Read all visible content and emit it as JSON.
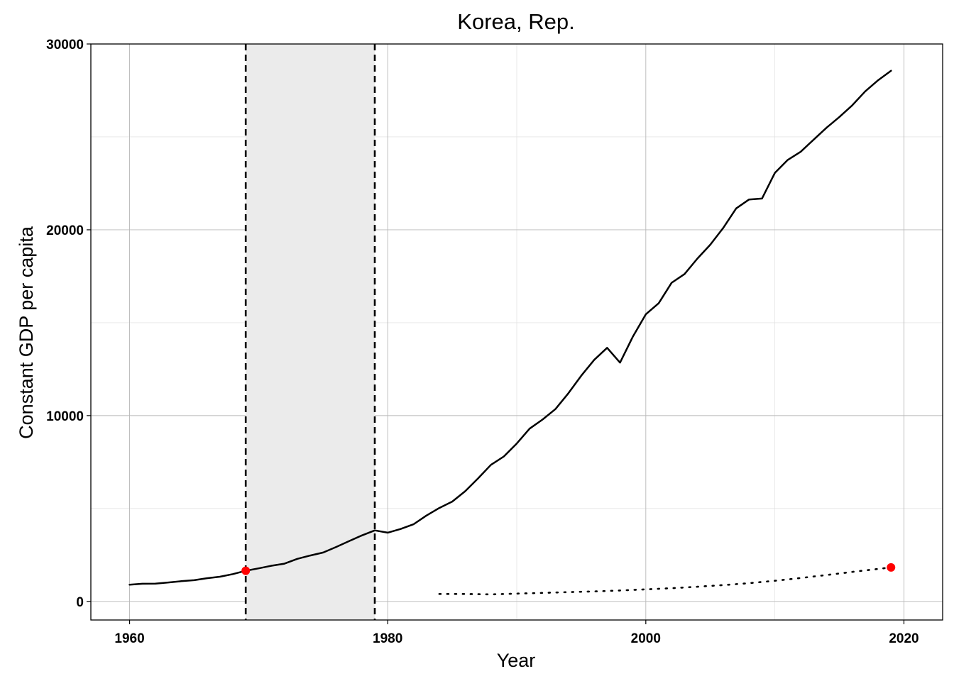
{
  "chart_data": {
    "type": "line",
    "title": "Korea, Rep.",
    "xlabel": "Year",
    "ylabel": "Constant GDP per capita",
    "xlim": [
      1957,
      2023
    ],
    "ylim": [
      -1000,
      30000
    ],
    "x_ticks": [
      1960,
      1980,
      2000,
      2020
    ],
    "y_ticks": [
      0,
      10000,
      20000,
      30000
    ],
    "grid": true,
    "legend": "none",
    "shaded_region": {
      "x_start": 1969,
      "x_end": 1979,
      "color": "#ebebeb"
    },
    "vertical_lines": [
      {
        "x": 1969,
        "style": "dashed"
      },
      {
        "x": 1979,
        "style": "dashed"
      }
    ],
    "series": [
      {
        "style": "solid",
        "color": "#000000",
        "points": [
          [
            1960,
            900
          ],
          [
            1961,
            950
          ],
          [
            1962,
            960
          ],
          [
            1963,
            1020
          ],
          [
            1964,
            1090
          ],
          [
            1965,
            1140
          ],
          [
            1966,
            1250
          ],
          [
            1967,
            1330
          ],
          [
            1968,
            1470
          ],
          [
            1969,
            1650
          ],
          [
            1970,
            1780
          ],
          [
            1971,
            1920
          ],
          [
            1972,
            2030
          ],
          [
            1973,
            2290
          ],
          [
            1974,
            2470
          ],
          [
            1975,
            2630
          ],
          [
            1976,
            2930
          ],
          [
            1977,
            3240
          ],
          [
            1978,
            3550
          ],
          [
            1979,
            3820
          ],
          [
            1980,
            3700
          ],
          [
            1981,
            3900
          ],
          [
            1982,
            4150
          ],
          [
            1983,
            4620
          ],
          [
            1984,
            5030
          ],
          [
            1985,
            5370
          ],
          [
            1986,
            5930
          ],
          [
            1987,
            6620
          ],
          [
            1988,
            7350
          ],
          [
            1989,
            7800
          ],
          [
            1990,
            8500
          ],
          [
            1991,
            9300
          ],
          [
            1992,
            9790
          ],
          [
            1993,
            10350
          ],
          [
            1994,
            11200
          ],
          [
            1995,
            12150
          ],
          [
            1996,
            13000
          ],
          [
            1997,
            13650
          ],
          [
            1998,
            12850
          ],
          [
            1999,
            14250
          ],
          [
            2000,
            15450
          ],
          [
            2001,
            16050
          ],
          [
            2002,
            17150
          ],
          [
            2003,
            17620
          ],
          [
            2004,
            18450
          ],
          [
            2005,
            19200
          ],
          [
            2006,
            20100
          ],
          [
            2007,
            21150
          ],
          [
            2008,
            21630
          ],
          [
            2009,
            21680
          ],
          [
            2010,
            23060
          ],
          [
            2011,
            23760
          ],
          [
            2012,
            24200
          ],
          [
            2013,
            24850
          ],
          [
            2014,
            25490
          ],
          [
            2015,
            26070
          ],
          [
            2016,
            26700
          ],
          [
            2017,
            27450
          ],
          [
            2018,
            28050
          ],
          [
            2019,
            28560
          ]
        ]
      },
      {
        "style": "dotted",
        "color": "#000000",
        "points": [
          [
            1984,
            400
          ],
          [
            1986,
            400
          ],
          [
            1988,
            380
          ],
          [
            1990,
            420
          ],
          [
            1992,
            460
          ],
          [
            1994,
            500
          ],
          [
            1996,
            540
          ],
          [
            1998,
            590
          ],
          [
            2000,
            650
          ],
          [
            2002,
            710
          ],
          [
            2004,
            790
          ],
          [
            2006,
            880
          ],
          [
            2008,
            980
          ],
          [
            2010,
            1110
          ],
          [
            2012,
            1260
          ],
          [
            2014,
            1420
          ],
          [
            2016,
            1590
          ],
          [
            2018,
            1750
          ],
          [
            2019,
            1830
          ]
        ]
      }
    ],
    "markers": [
      {
        "x": 1969,
        "y": 1650,
        "color": "#ff0000"
      },
      {
        "x": 2019,
        "y": 1830,
        "color": "#ff0000"
      }
    ]
  }
}
